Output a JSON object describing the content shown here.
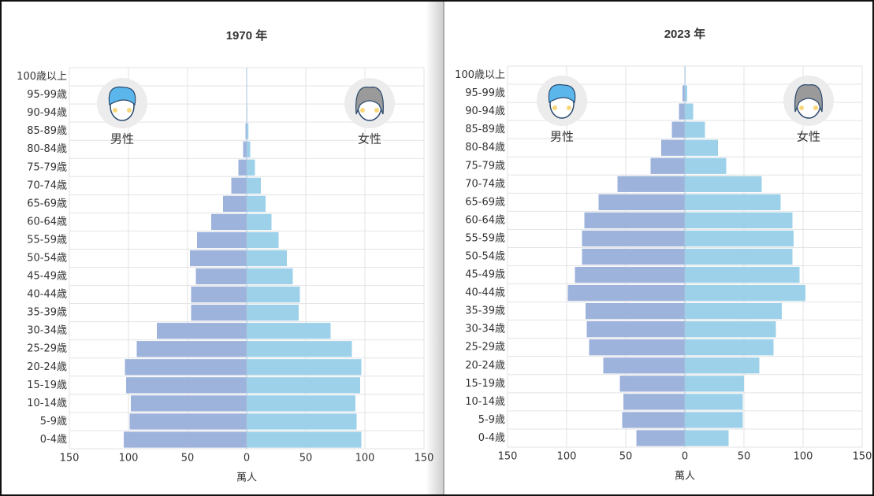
{
  "chart_data": [
    {
      "type": "pyramid",
      "title": "1970 年",
      "xlabel": "萬人",
      "categories": [
        "0-4歳",
        "5-9歳",
        "10-14歳",
        "15-19歳",
        "20-24歳",
        "25-29歳",
        "30-34歳",
        "35-39歳",
        "40-44歳",
        "45-49歳",
        "50-54歳",
        "55-59歳",
        "60-64歳",
        "65-69歳",
        "70-74歳",
        "75-79歳",
        "80-84歳",
        "85-89歳",
        "90-94歳",
        "95-99歳",
        "100歳以上"
      ],
      "series": [
        {
          "name": "男性",
          "color": "#9db3dc",
          "values": [
            -104,
            -99,
            -98,
            -102,
            -103,
            -93,
            -76,
            -47,
            -47,
            -43,
            -48,
            -42,
            -30,
            -20,
            -13,
            -7,
            -3,
            -1,
            -0.3,
            -0.1,
            0
          ]
        },
        {
          "name": "女性",
          "color": "#9dd1ea",
          "values": [
            97,
            93,
            92,
            96,
            97,
            89,
            71,
            44,
            45,
            39,
            34,
            27,
            21,
            16,
            12,
            7,
            3,
            1.5,
            0.5,
            0.1,
            0
          ]
        }
      ],
      "xlim": [
        -150,
        150
      ],
      "xticks": [
        {
          "value": -150,
          "label": "150"
        },
        {
          "value": -100,
          "label": "100"
        },
        {
          "value": -50,
          "label": "50"
        },
        0,
        50,
        100,
        150
      ],
      "grid": true
    },
    {
      "type": "pyramid",
      "title": "2023 年",
      "xlabel": "萬人",
      "categories": [
        "0-4歳",
        "5-9歳",
        "10-14歳",
        "15-19歳",
        "20-24歳",
        "25-29歳",
        "30-34歳",
        "35-39歳",
        "40-44歳",
        "45-49歳",
        "50-54歳",
        "55-59歳",
        "60-64歳",
        "65-69歳",
        "70-74歳",
        "75-79歳",
        "80-84歳",
        "85-89歳",
        "90-94歳",
        "95-99歳",
        "100歳以上"
      ],
      "series": [
        {
          "name": "男性",
          "color": "#9db3dc",
          "values": [
            -41,
            -53,
            -52,
            -55,
            -69,
            -81,
            -83,
            -84,
            -99,
            -93,
            -87,
            -87,
            -85,
            -73,
            -57,
            -29,
            -20,
            -11,
            -5,
            -2,
            -0.3
          ]
        },
        {
          "name": "女性",
          "color": "#9dd1ea",
          "values": [
            37,
            49,
            49,
            50,
            63,
            75,
            77,
            82,
            102,
            97,
            91,
            92,
            91,
            81,
            65,
            35,
            28,
            17,
            7,
            2,
            0.5
          ]
        }
      ],
      "xlim": [
        -150,
        150
      ],
      "xticks": [
        {
          "value": -150,
          "label": "150"
        },
        {
          "value": -100,
          "label": "100"
        },
        {
          "value": -50,
          "label": "50"
        },
        0,
        50,
        100,
        150
      ],
      "grid": true
    }
  ]
}
